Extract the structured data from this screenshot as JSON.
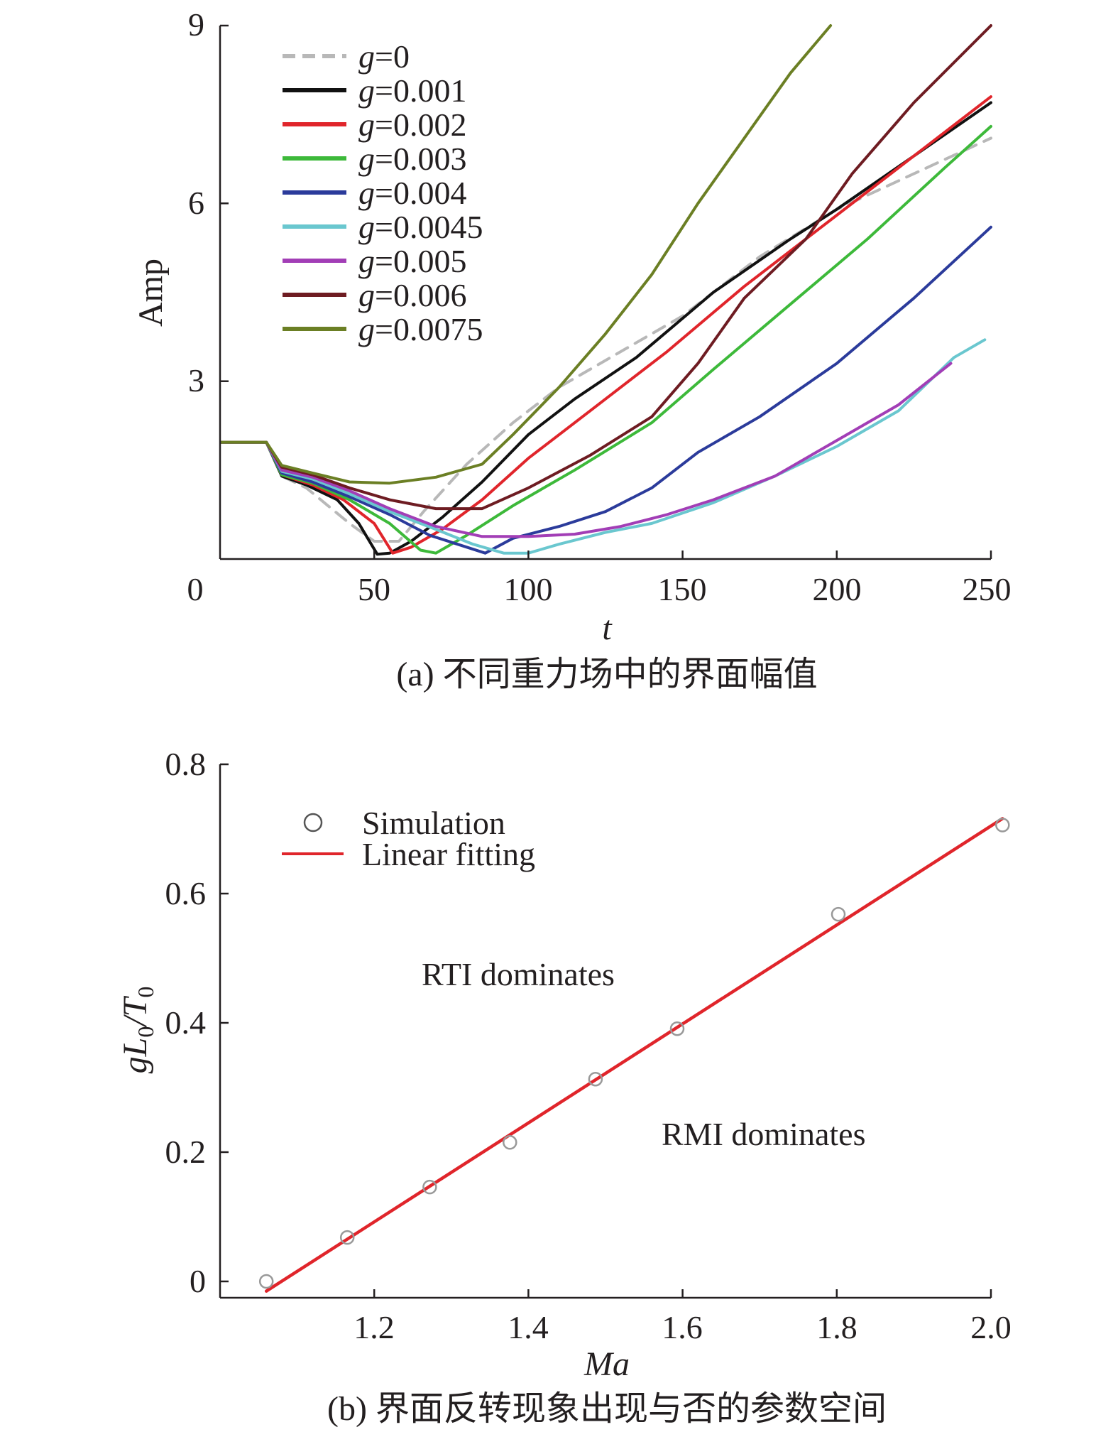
{
  "chart_data": [
    {
      "id": "a",
      "type": "line",
      "caption": "(a) 不同重力场中的界面幅值",
      "xlabel": "t",
      "ylabel": "Amp",
      "xlim": [
        0,
        250
      ],
      "ylim": [
        0,
        9
      ],
      "xticks": [
        "0",
        "50",
        "100",
        "150",
        "200",
        "250"
      ],
      "yticks": [
        "3",
        "6",
        "9"
      ],
      "legend_position": "top-left",
      "series": [
        {
          "name": "g=0",
          "legend_prefix": "g",
          "legend_value": "=0",
          "color": "#b8b8b8",
          "dashed": true,
          "points": [
            [
              0,
              1.97
            ],
            [
              15,
              1.97
            ],
            [
              20,
              1.4
            ],
            [
              28,
              1.2
            ],
            [
              35,
              0.9
            ],
            [
              42,
              0.6
            ],
            [
              50,
              0.3
            ],
            [
              58,
              0.3
            ],
            [
              66,
              0.8
            ],
            [
              80,
              1.6
            ],
            [
              95,
              2.3
            ],
            [
              110,
              2.9
            ],
            [
              130,
              3.5
            ],
            [
              150,
              4.1
            ],
            [
              175,
              5.1
            ],
            [
              200,
              5.9
            ],
            [
              225,
              6.5
            ],
            [
              250,
              7.1
            ]
          ]
        },
        {
          "name": "g=0.001",
          "legend_prefix": "g",
          "legend_value": "=0.001",
          "color": "#111111",
          "dashed": false,
          "points": [
            [
              0,
              1.97
            ],
            [
              15,
              1.97
            ],
            [
              20,
              1.4
            ],
            [
              28,
              1.25
            ],
            [
              38,
              1.0
            ],
            [
              45,
              0.6
            ],
            [
              51,
              0.08
            ],
            [
              55,
              0.1
            ],
            [
              62,
              0.3
            ],
            [
              72,
              0.7
            ],
            [
              85,
              1.3
            ],
            [
              100,
              2.1
            ],
            [
              115,
              2.7
            ],
            [
              135,
              3.4
            ],
            [
              160,
              4.5
            ],
            [
              185,
              5.4
            ],
            [
              200,
              5.9
            ],
            [
              225,
              6.8
            ],
            [
              250,
              7.7
            ]
          ]
        },
        {
          "name": "g=0.002",
          "legend_prefix": "g",
          "legend_value": "=0.002",
          "color": "#e0252b",
          "dashed": false,
          "points": [
            [
              0,
              1.97
            ],
            [
              15,
              1.97
            ],
            [
              20,
              1.42
            ],
            [
              30,
              1.25
            ],
            [
              40,
              1.0
            ],
            [
              50,
              0.6
            ],
            [
              56,
              0.1
            ],
            [
              62,
              0.2
            ],
            [
              72,
              0.5
            ],
            [
              85,
              1.0
            ],
            [
              100,
              1.7
            ],
            [
              120,
              2.5
            ],
            [
              145,
              3.5
            ],
            [
              170,
              4.6
            ],
            [
              200,
              5.8
            ],
            [
              225,
              6.8
            ],
            [
              250,
              7.8
            ]
          ]
        },
        {
          "name": "g=0.003",
          "legend_prefix": "g",
          "legend_value": "=0.003",
          "color": "#3db93a",
          "dashed": false,
          "points": [
            [
              0,
              1.97
            ],
            [
              15,
              1.97
            ],
            [
              20,
              1.42
            ],
            [
              30,
              1.28
            ],
            [
              42,
              1.0
            ],
            [
              55,
              0.6
            ],
            [
              65,
              0.15
            ],
            [
              70,
              0.1
            ],
            [
              80,
              0.4
            ],
            [
              95,
              0.9
            ],
            [
              115,
              1.5
            ],
            [
              140,
              2.3
            ],
            [
              160,
              3.2
            ],
            [
              185,
              4.3
            ],
            [
              210,
              5.4
            ],
            [
              235,
              6.6
            ],
            [
              250,
              7.3
            ]
          ]
        },
        {
          "name": "g=0.004",
          "legend_prefix": "g",
          "legend_value": "=0.004",
          "color": "#2b3b9b",
          "dashed": false,
          "points": [
            [
              0,
              1.97
            ],
            [
              15,
              1.97
            ],
            [
              20,
              1.45
            ],
            [
              30,
              1.3
            ],
            [
              42,
              1.05
            ],
            [
              55,
              0.75
            ],
            [
              68,
              0.4
            ],
            [
              80,
              0.2
            ],
            [
              86,
              0.1
            ],
            [
              95,
              0.35
            ],
            [
              110,
              0.55
            ],
            [
              125,
              0.8
            ],
            [
              140,
              1.2
            ],
            [
              155,
              1.8
            ],
            [
              175,
              2.4
            ],
            [
              200,
              3.3
            ],
            [
              225,
              4.4
            ],
            [
              250,
              5.6
            ]
          ]
        },
        {
          "name": "g=0.0045",
          "legend_prefix": "g",
          "legend_value": "=0.0045",
          "color": "#6ac7cf",
          "dashed": false,
          "points": [
            [
              0,
              1.97
            ],
            [
              15,
              1.97
            ],
            [
              20,
              1.48
            ],
            [
              30,
              1.35
            ],
            [
              42,
              1.1
            ],
            [
              55,
              0.8
            ],
            [
              70,
              0.5
            ],
            [
              82,
              0.25
            ],
            [
              92,
              0.1
            ],
            [
              100,
              0.1
            ],
            [
              110,
              0.25
            ],
            [
              125,
              0.45
            ],
            [
              140,
              0.6
            ],
            [
              160,
              0.95
            ],
            [
              180,
              1.4
            ],
            [
              200,
              1.9
            ],
            [
              220,
              2.5
            ],
            [
              238,
              3.4
            ],
            [
              248,
              3.7
            ]
          ]
        },
        {
          "name": "g=0.005",
          "legend_prefix": "g",
          "legend_value": "=0.005",
          "color": "#a23eb6",
          "dashed": false,
          "points": [
            [
              0,
              1.97
            ],
            [
              15,
              1.97
            ],
            [
              20,
              1.5
            ],
            [
              30,
              1.38
            ],
            [
              42,
              1.15
            ],
            [
              55,
              0.85
            ],
            [
              70,
              0.55
            ],
            [
              85,
              0.38
            ],
            [
              100,
              0.38
            ],
            [
              115,
              0.42
            ],
            [
              130,
              0.55
            ],
            [
              145,
              0.75
            ],
            [
              160,
              1.0
            ],
            [
              180,
              1.4
            ],
            [
              200,
              2.0
            ],
            [
              220,
              2.6
            ],
            [
              237,
              3.3
            ]
          ]
        },
        {
          "name": "g=0.006",
          "legend_prefix": "g",
          "legend_value": "=0.006",
          "color": "#6e1c22",
          "dashed": false,
          "points": [
            [
              0,
              1.97
            ],
            [
              15,
              1.97
            ],
            [
              20,
              1.55
            ],
            [
              30,
              1.42
            ],
            [
              42,
              1.2
            ],
            [
              55,
              1.0
            ],
            [
              70,
              0.85
            ],
            [
              85,
              0.85
            ],
            [
              100,
              1.2
            ],
            [
              120,
              1.75
            ],
            [
              140,
              2.4
            ],
            [
              155,
              3.3
            ],
            [
              170,
              4.4
            ],
            [
              190,
              5.4
            ],
            [
              205,
              6.5
            ],
            [
              225,
              7.7
            ],
            [
              250,
              9.0
            ]
          ]
        },
        {
          "name": "g=0.0075",
          "legend_prefix": "g",
          "legend_value": "=0.0075",
          "color": "#6b7f24",
          "dashed": false,
          "points": [
            [
              0,
              1.97
            ],
            [
              15,
              1.97
            ],
            [
              20,
              1.58
            ],
            [
              30,
              1.45
            ],
            [
              42,
              1.3
            ],
            [
              55,
              1.28
            ],
            [
              70,
              1.38
            ],
            [
              85,
              1.6
            ],
            [
              95,
              2.1
            ],
            [
              110,
              2.9
            ],
            [
              125,
              3.8
            ],
            [
              140,
              4.8
            ],
            [
              155,
              6.0
            ],
            [
              170,
              7.1
            ],
            [
              185,
              8.2
            ],
            [
              198,
              9.0
            ]
          ]
        }
      ]
    },
    {
      "id": "b",
      "type": "scatter",
      "caption": "(b) 界面反转现象出现与否的参数空间",
      "xlabel": "Ma",
      "ylabel_main": "gL",
      "ylabel_sub1": "0",
      "ylabel_slash": "/T",
      "ylabel_sub2": "0",
      "xlim": [
        1.0,
        2.0
      ],
      "ylim": [
        -0.025,
        0.8
      ],
      "xticks": [
        "1.2",
        "1.4",
        "1.6",
        "1.8",
        "2.0"
      ],
      "yticks": [
        "0",
        "0.2",
        "0.4",
        "0.6",
        "0.8"
      ],
      "legend_position": "top-left",
      "legend": {
        "scatter_label": "Simulation",
        "line_label": "Linear fitting"
      },
      "annotations": {
        "upper": "RTI dominates",
        "lower": "RMI dominates"
      },
      "simulation_color": "#999999",
      "fit_color": "#e0252b",
      "points": [
        [
          1.06,
          0.0
        ],
        [
          1.165,
          0.068
        ],
        [
          1.272,
          0.146
        ],
        [
          1.376,
          0.215
        ],
        [
          1.487,
          0.313
        ],
        [
          1.593,
          0.391
        ],
        [
          1.802,
          0.568
        ],
        [
          2.015,
          0.706
        ]
      ],
      "fit_line": [
        [
          1.06,
          -0.015
        ],
        [
          2.015,
          0.716
        ]
      ]
    }
  ]
}
